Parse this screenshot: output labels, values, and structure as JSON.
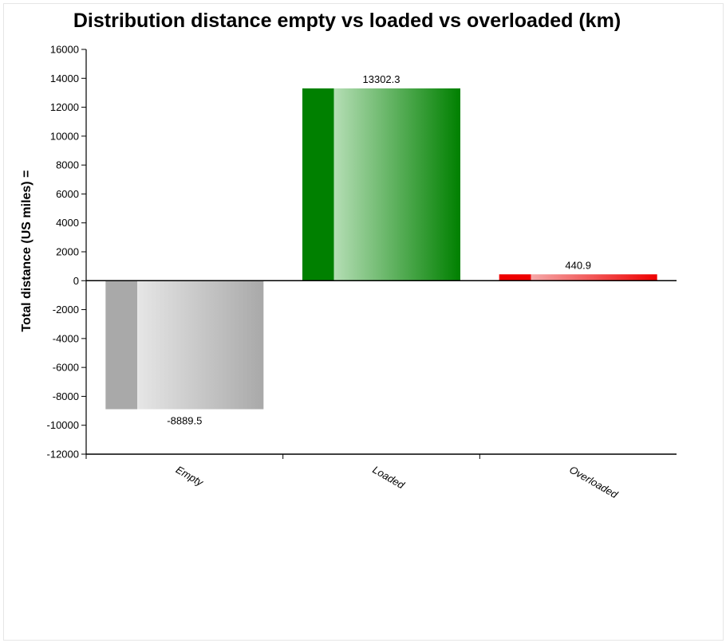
{
  "chart_data": {
    "type": "bar",
    "title": "Distribution distance empty vs loaded vs overloaded (km)",
    "xlabel": "",
    "ylabel": "Total distance (US miles) =",
    "categories": [
      "Empty",
      "Loaded",
      "Overloaded"
    ],
    "values": [
      -8889.5,
      13302.3,
      440.9
    ],
    "value_labels": [
      "-8889.5",
      "13302.3",
      "440.9"
    ],
    "ylim": [
      -12000,
      16000
    ],
    "yticks": [
      16000,
      14000,
      12000,
      10000,
      8000,
      6000,
      4000,
      2000,
      0,
      -2000,
      -4000,
      -6000,
      -8000,
      -10000,
      -12000
    ],
    "grid": false,
    "legend": "none",
    "colors": {
      "Empty": {
        "dark": "#a9a9a9",
        "light": "#e6e6e6"
      },
      "Loaded": {
        "dark": "#008000",
        "light": "#b5deb5"
      },
      "Overloaded": {
        "dark": "#ee0000",
        "light": "#f5a8a8"
      }
    }
  }
}
